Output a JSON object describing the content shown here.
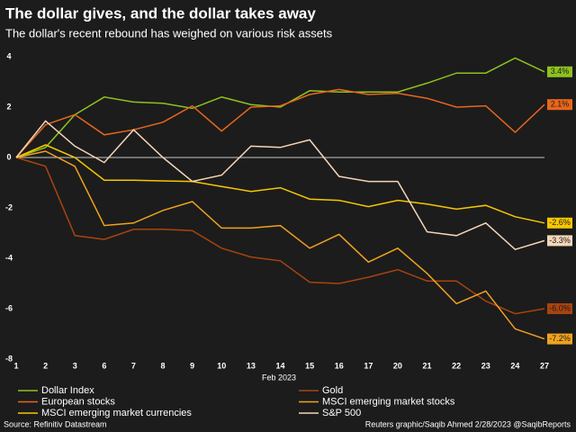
{
  "chart_data": {
    "type": "line",
    "title": "The dollar gives, and the dollar takes away",
    "subtitle": "The dollar's recent rebound has weighed on various risk assets",
    "x_label": "Feb 2023",
    "source": "Source: Refinitiv Datastream",
    "credit": "Reuters graphic/Saqib Ahmed 2/28/2023 @SaqibReports",
    "categories": [
      "1",
      "2",
      "3",
      "6",
      "7",
      "8",
      "9",
      "10",
      "13",
      "14",
      "15",
      "16",
      "17",
      "20",
      "21",
      "22",
      "23",
      "24",
      "27"
    ],
    "ylim": [
      -8,
      4.4
    ],
    "yticks": [
      -8,
      -6,
      -4,
      -2,
      0,
      2,
      4
    ],
    "zero_line": true,
    "series": [
      {
        "name": "Dollar Index",
        "color": "#8dc21f",
        "end_label": "3.4%",
        "values": [
          0,
          0.4,
          1.7,
          2.4,
          2.2,
          2.15,
          1.95,
          2.4,
          2.1,
          2.0,
          2.65,
          2.6,
          2.6,
          2.6,
          2.95,
          3.35,
          3.35,
          3.95,
          3.4
        ]
      },
      {
        "name": "Gold",
        "color": "#a8430f",
        "end_label": "-6.0%",
        "values": [
          0,
          -0.35,
          -3.1,
          -3.25,
          -2.85,
          -2.85,
          -2.9,
          -3.6,
          -3.95,
          -4.1,
          -4.95,
          -5.0,
          -4.75,
          -4.45,
          -4.9,
          -4.9,
          -5.7,
          -6.2,
          -6.0
        ]
      },
      {
        "name": "European stocks",
        "color": "#e8661c",
        "end_label": "2.1%",
        "values": [
          0,
          1.3,
          1.7,
          0.9,
          1.1,
          1.4,
          2.05,
          1.05,
          2.0,
          2.05,
          2.5,
          2.7,
          2.5,
          2.55,
          2.35,
          2.0,
          2.05,
          1.0,
          2.1
        ]
      },
      {
        "name": "MSCI emerging market stocks",
        "color": "#f0a21e",
        "end_label": "-7.2%",
        "values": [
          0,
          0.25,
          -0.35,
          -2.7,
          -2.6,
          -2.1,
          -1.75,
          -2.8,
          -2.8,
          -2.7,
          -3.6,
          -3.05,
          -4.15,
          -3.6,
          -4.6,
          -5.8,
          -5.3,
          -6.8,
          -7.2
        ]
      },
      {
        "name": "MSCI emerging market currencies",
        "color": "#f7c600",
        "end_label": "-2.6%",
        "values": [
          0,
          0.5,
          0.0,
          -0.9,
          -0.9,
          -0.93,
          -0.95,
          -1.15,
          -1.35,
          -1.2,
          -1.65,
          -1.7,
          -1.95,
          -1.7,
          -1.85,
          -2.05,
          -1.9,
          -2.35,
          -2.6
        ]
      },
      {
        "name": "S&P 500",
        "color": "#f5d6b8",
        "end_label": "-3.3%",
        "values": [
          0,
          1.45,
          0.45,
          -0.2,
          1.1,
          0.0,
          -0.95,
          -0.7,
          0.45,
          0.4,
          0.7,
          -0.75,
          -0.95,
          -0.95,
          -2.95,
          -3.1,
          -2.6,
          -3.65,
          -3.3
        ]
      }
    ]
  }
}
